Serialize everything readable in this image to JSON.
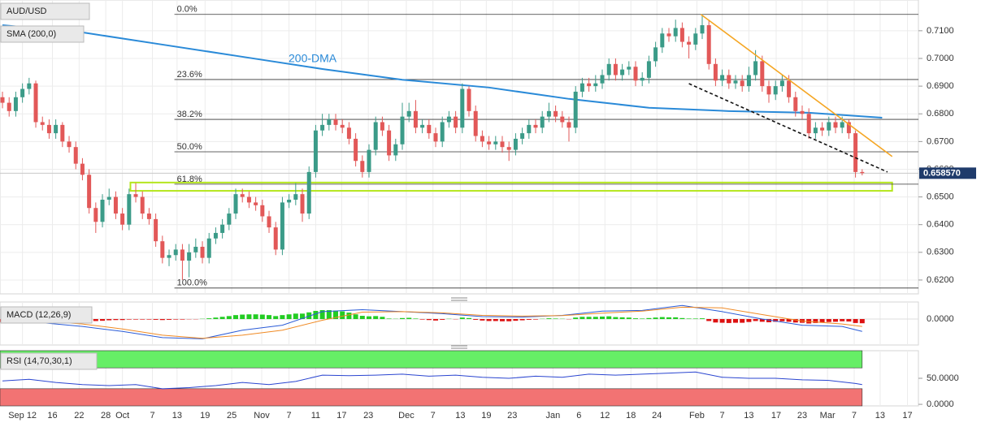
{
  "chart_data": {
    "type": "candlestick",
    "symbol": "AUD/USD",
    "up_color": "#3b9b88",
    "down_color": "#e25858",
    "xlim": [
      -0.37,
      137.44
    ],
    "xticks": [
      {
        "value": 3,
        "label": "Sep 12"
      },
      {
        "value": 7.5,
        "label": "16"
      },
      {
        "value": 11.5,
        "label": "22"
      },
      {
        "value": 15.5,
        "label": "28"
      },
      {
        "value": 18,
        "label": "Oct"
      },
      {
        "value": 22.5,
        "label": "7"
      },
      {
        "value": 26.2,
        "label": "13"
      },
      {
        "value": 30.4,
        "label": "19"
      },
      {
        "value": 34.4,
        "label": "25"
      },
      {
        "value": 38.9,
        "label": "Nov"
      },
      {
        "value": 43,
        "label": "7"
      },
      {
        "value": 47,
        "label": "11"
      },
      {
        "value": 50.9,
        "label": "17"
      },
      {
        "value": 54.9,
        "label": "23"
      },
      {
        "value": 60.6,
        "label": "Dec"
      },
      {
        "value": 64.6,
        "label": "7"
      },
      {
        "value": 68.7,
        "label": "13"
      },
      {
        "value": 72.6,
        "label": "19"
      },
      {
        "value": 76.5,
        "label": "23"
      },
      {
        "value": 82.6,
        "label": "Jan"
      },
      {
        "value": 86.5,
        "label": "6"
      },
      {
        "value": 90.4,
        "label": "12"
      },
      {
        "value": 94.3,
        "label": "18"
      },
      {
        "value": 98.2,
        "label": "24"
      },
      {
        "value": 104.2,
        "label": "Feb"
      },
      {
        "value": 108,
        "label": "7"
      },
      {
        "value": 112,
        "label": "13"
      },
      {
        "value": 116.1,
        "label": "17"
      },
      {
        "value": 120,
        "label": "23"
      },
      {
        "value": 123.8,
        "label": "Mar"
      },
      {
        "value": 127.8,
        "label": "7"
      },
      {
        "value": 131.7,
        "label": "13"
      },
      {
        "value": 135.8,
        "label": "17"
      }
    ],
    "ylim": [
      0.615,
      0.7211
    ],
    "yticks": [
      {
        "value": 0.62,
        "label": "0.6200"
      },
      {
        "value": 0.63,
        "label": "0.6300"
      },
      {
        "value": 0.64,
        "label": "0.6400"
      },
      {
        "value": 0.65,
        "label": "0.6500"
      },
      {
        "value": 0.66,
        "label": "0.6600"
      },
      {
        "value": 0.67,
        "label": "0.6700"
      },
      {
        "value": 0.68,
        "label": "0.6800"
      },
      {
        "value": 0.69,
        "label": "0.6900"
      },
      {
        "value": 0.7,
        "label": "0.7000"
      },
      {
        "value": 0.71,
        "label": "0.7100"
      }
    ],
    "last_price": {
      "value": 0.65857,
      "label": "0.658570",
      "color": "#1f3b6b"
    },
    "candles": [
      [
        0.686,
        0.688,
        0.682,
        0.684
      ],
      [
        0.684,
        0.686,
        0.679,
        0.681
      ],
      [
        0.681,
        0.688,
        0.679,
        0.686
      ],
      [
        0.686,
        0.691,
        0.684,
        0.689
      ],
      [
        0.689,
        0.693,
        0.687,
        0.691
      ],
      [
        0.691,
        0.692,
        0.675,
        0.677
      ],
      [
        0.677,
        0.679,
        0.674,
        0.676
      ],
      [
        0.676,
        0.678,
        0.671,
        0.673
      ],
      [
        0.673,
        0.678,
        0.671,
        0.676
      ],
      [
        0.676,
        0.677,
        0.668,
        0.67
      ],
      [
        0.67,
        0.672,
        0.666,
        0.668
      ],
      [
        0.668,
        0.67,
        0.66,
        0.662
      ],
      [
        0.662,
        0.664,
        0.656,
        0.658
      ],
      [
        0.658,
        0.66,
        0.644,
        0.646
      ],
      [
        0.646,
        0.648,
        0.637,
        0.641
      ],
      [
        0.641,
        0.651,
        0.639,
        0.649
      ],
      [
        0.649,
        0.653,
        0.647,
        0.65
      ],
      [
        0.65,
        0.652,
        0.642,
        0.644
      ],
      [
        0.644,
        0.646,
        0.638,
        0.64
      ],
      [
        0.64,
        0.653,
        0.638,
        0.651
      ],
      [
        0.651,
        0.655,
        0.648,
        0.65
      ],
      [
        0.65,
        0.652,
        0.642,
        0.644
      ],
      [
        0.644,
        0.646,
        0.64,
        0.642
      ],
      [
        0.642,
        0.644,
        0.632,
        0.634
      ],
      [
        0.634,
        0.636,
        0.626,
        0.628
      ],
      [
        0.628,
        0.631,
        0.625,
        0.629
      ],
      [
        0.629,
        0.633,
        0.627,
        0.631
      ],
      [
        0.631,
        0.633,
        0.62,
        0.627
      ],
      [
        0.627,
        0.633,
        0.621,
        0.63
      ],
      [
        0.63,
        0.635,
        0.628,
        0.632
      ],
      [
        0.632,
        0.634,
        0.626,
        0.628
      ],
      [
        0.628,
        0.637,
        0.626,
        0.635
      ],
      [
        0.635,
        0.639,
        0.633,
        0.637
      ],
      [
        0.637,
        0.642,
        0.635,
        0.64
      ],
      [
        0.64,
        0.646,
        0.638,
        0.644
      ],
      [
        0.644,
        0.653,
        0.642,
        0.651
      ],
      [
        0.651,
        0.653,
        0.648,
        0.65
      ],
      [
        0.65,
        0.652,
        0.646,
        0.648
      ],
      [
        0.648,
        0.65,
        0.645,
        0.647
      ],
      [
        0.647,
        0.649,
        0.641,
        0.643
      ],
      [
        0.643,
        0.645,
        0.637,
        0.639
      ],
      [
        0.639,
        0.641,
        0.629,
        0.631
      ],
      [
        0.631,
        0.65,
        0.629,
        0.648
      ],
      [
        0.648,
        0.651,
        0.646,
        0.649
      ],
      [
        0.649,
        0.655,
        0.647,
        0.651
      ],
      [
        0.651,
        0.653,
        0.641,
        0.644
      ],
      [
        0.644,
        0.661,
        0.642,
        0.659
      ],
      [
        0.659,
        0.676,
        0.657,
        0.674
      ],
      [
        0.674,
        0.68,
        0.672,
        0.676
      ],
      [
        0.676,
        0.68,
        0.674,
        0.678
      ],
      [
        0.678,
        0.68,
        0.674,
        0.676
      ],
      [
        0.676,
        0.678,
        0.673,
        0.675
      ],
      [
        0.675,
        0.677,
        0.669,
        0.671
      ],
      [
        0.671,
        0.673,
        0.661,
        0.663
      ],
      [
        0.663,
        0.665,
        0.657,
        0.659
      ],
      [
        0.659,
        0.669,
        0.657,
        0.667
      ],
      [
        0.667,
        0.679,
        0.665,
        0.677
      ],
      [
        0.677,
        0.679,
        0.672,
        0.674
      ],
      [
        0.674,
        0.676,
        0.663,
        0.665
      ],
      [
        0.665,
        0.671,
        0.663,
        0.669
      ],
      [
        0.669,
        0.684,
        0.667,
        0.679
      ],
      [
        0.679,
        0.684,
        0.677,
        0.681
      ],
      [
        0.681,
        0.685,
        0.673,
        0.675
      ],
      [
        0.675,
        0.678,
        0.673,
        0.676
      ],
      [
        0.676,
        0.678,
        0.671,
        0.673
      ],
      [
        0.673,
        0.675,
        0.668,
        0.67
      ],
      [
        0.67,
        0.679,
        0.668,
        0.677
      ],
      [
        0.677,
        0.681,
        0.675,
        0.679
      ],
      [
        0.679,
        0.681,
        0.673,
        0.675
      ],
      [
        0.675,
        0.691,
        0.673,
        0.689
      ],
      [
        0.689,
        0.69,
        0.679,
        0.681
      ],
      [
        0.681,
        0.683,
        0.67,
        0.672
      ],
      [
        0.672,
        0.674,
        0.668,
        0.67
      ],
      [
        0.67,
        0.672,
        0.667,
        0.669
      ],
      [
        0.669,
        0.672,
        0.667,
        0.67
      ],
      [
        0.67,
        0.672,
        0.666,
        0.668
      ],
      [
        0.668,
        0.67,
        0.663,
        0.667
      ],
      [
        0.667,
        0.673,
        0.665,
        0.671
      ],
      [
        0.671,
        0.675,
        0.669,
        0.673
      ],
      [
        0.673,
        0.678,
        0.671,
        0.676
      ],
      [
        0.676,
        0.678,
        0.673,
        0.675
      ],
      [
        0.675,
        0.681,
        0.673,
        0.679
      ],
      [
        0.679,
        0.684,
        0.677,
        0.681
      ],
      [
        0.681,
        0.683,
        0.677,
        0.679
      ],
      [
        0.679,
        0.681,
        0.675,
        0.677
      ],
      [
        0.677,
        0.679,
        0.67,
        0.675
      ],
      [
        0.675,
        0.69,
        0.673,
        0.688
      ],
      [
        0.688,
        0.693,
        0.686,
        0.691
      ],
      [
        0.691,
        0.693,
        0.688,
        0.69
      ],
      [
        0.69,
        0.694,
        0.688,
        0.691
      ],
      [
        0.691,
        0.696,
        0.689,
        0.694
      ],
      [
        0.694,
        0.7,
        0.692,
        0.698
      ],
      [
        0.698,
        0.7,
        0.692,
        0.694
      ],
      [
        0.694,
        0.698,
        0.692,
        0.696
      ],
      [
        0.696,
        0.699,
        0.694,
        0.697
      ],
      [
        0.697,
        0.699,
        0.69,
        0.692
      ],
      [
        0.692,
        0.695,
        0.69,
        0.693
      ],
      [
        0.693,
        0.701,
        0.691,
        0.699
      ],
      [
        0.699,
        0.706,
        0.697,
        0.704
      ],
      [
        0.704,
        0.711,
        0.702,
        0.709
      ],
      [
        0.709,
        0.711,
        0.706,
        0.708
      ],
      [
        0.708,
        0.714,
        0.706,
        0.711
      ],
      [
        0.711,
        0.713,
        0.704,
        0.706
      ],
      [
        0.706,
        0.708,
        0.7,
        0.705
      ],
      [
        0.705,
        0.711,
        0.703,
        0.709
      ],
      [
        0.709,
        0.716,
        0.707,
        0.712
      ],
      [
        0.712,
        0.714,
        0.696,
        0.698
      ],
      [
        0.698,
        0.7,
        0.69,
        0.692
      ],
      [
        0.692,
        0.696,
        0.69,
        0.694
      ],
      [
        0.694,
        0.696,
        0.689,
        0.691
      ],
      [
        0.691,
        0.694,
        0.689,
        0.692
      ],
      [
        0.692,
        0.694,
        0.688,
        0.69
      ],
      [
        0.69,
        0.697,
        0.688,
        0.694
      ],
      [
        0.694,
        0.703,
        0.692,
        0.699
      ],
      [
        0.699,
        0.701,
        0.688,
        0.69
      ],
      [
        0.69,
        0.692,
        0.684,
        0.687
      ],
      [
        0.687,
        0.692,
        0.685,
        0.69
      ],
      [
        0.69,
        0.694,
        0.688,
        0.692
      ],
      [
        0.692,
        0.694,
        0.684,
        0.686
      ],
      [
        0.686,
        0.688,
        0.679,
        0.681
      ],
      [
        0.681,
        0.683,
        0.678,
        0.68
      ],
      [
        0.68,
        0.682,
        0.671,
        0.673
      ],
      [
        0.673,
        0.677,
        0.671,
        0.675
      ],
      [
        0.675,
        0.677,
        0.672,
        0.674
      ],
      [
        0.674,
        0.679,
        0.672,
        0.677
      ],
      [
        0.677,
        0.679,
        0.673,
        0.675
      ],
      [
        0.675,
        0.679,
        0.673,
        0.677
      ],
      [
        0.677,
        0.678,
        0.671,
        0.673
      ],
      [
        0.673,
        0.674,
        0.657,
        0.659
      ],
      [
        0.659,
        0.66,
        0.6578,
        0.6586
      ]
    ],
    "sma": {
      "name": "SMA (200,0)",
      "label": "200-DMA",
      "color": "#2a8ad8",
      "x": [
        0,
        12,
        24,
        36,
        48,
        60,
        73,
        85,
        97,
        109,
        121,
        132
      ],
      "values": [
        0.712,
        0.7094,
        0.705,
        0.7006,
        0.6962,
        0.6923,
        0.6895,
        0.6854,
        0.6822,
        0.681,
        0.6804,
        0.6786
      ]
    },
    "fibonacci": {
      "start": 25.8,
      "color": "#333333",
      "levels": [
        {
          "label": "0.0%",
          "value": 0.7159
        },
        {
          "label": "23.6%",
          "value": 0.6924
        },
        {
          "label": "38.2%",
          "value": 0.678
        },
        {
          "label": "50.0%",
          "value": 0.6663
        },
        {
          "label": "61.8%",
          "value": 0.6546
        },
        {
          "label": "100.0%",
          "value": 0.6171
        }
      ]
    },
    "trendlines": [
      {
        "color": "#f5a623",
        "dashed": false,
        "x": [
          104.8,
          133.5
        ],
        "values": [
          0.7159,
          0.6646
        ]
      },
      {
        "color": "#111111",
        "dashed": true,
        "x": [
          103,
          132.8
        ],
        "values": [
          0.6909,
          0.659
        ]
      }
    ],
    "zone": {
      "color": "#b5e61d",
      "x": [
        19.2,
        133.5
      ],
      "values": [
        0.6552,
        0.6522
      ]
    },
    "macd": {
      "name": "MACD (12,26,9)",
      "ylim": [
        -0.0105,
        0.0069
      ],
      "yticks": [
        {
          "value": 0,
          "label": "0.0000"
        }
      ],
      "up_color": "#22cc22",
      "down_color": "#dd1111",
      "histogram": [
        -0.0012,
        -0.0012,
        -0.0011,
        -0.001,
        -0.001,
        -0.0012,
        -0.0013,
        -0.0013,
        -0.0012,
        -0.0012,
        -0.0011,
        -0.0011,
        -0.001,
        -0.001,
        -0.0008,
        -0.0007,
        -0.0005,
        -0.0004,
        -0.0004,
        -0.0002,
        -0.0002,
        -0.0002,
        -0.0002,
        -0.0003,
        -0.0004,
        -0.0003,
        -0.0002,
        -0.0002,
        -0.0001,
        -0.0001,
        0.0001,
        0.0003,
        0.0006,
        0.0009,
        0.0012,
        0.0016,
        0.0018,
        0.0019,
        0.0019,
        0.0018,
        0.0016,
        0.0012,
        0.0016,
        0.0019,
        0.0022,
        0.0022,
        0.0027,
        0.0033,
        0.0036,
        0.0036,
        0.0034,
        0.0031,
        0.0026,
        0.0019,
        0.0013,
        0.0011,
        0.0012,
        0.0009,
        0.0002,
        0.0001,
        0.0004,
        0.0005,
        0.0002,
        -0.0002,
        -0.0004,
        -0.0006,
        -0.0003,
        0.0001,
        -0.0001,
        0.0006,
        0.0004,
        -0.0003,
        -0.0006,
        -0.0008,
        -0.0008,
        -0.0009,
        -0.0009,
        -0.0007,
        -0.0005,
        -0.0003,
        -0.0002,
        0.0001,
        0.0003,
        0.0002,
        0.0001,
        -0.0001,
        0.0006,
        0.0009,
        0.0009,
        0.0009,
        0.001,
        0.0011,
        0.0008,
        0.0007,
        0.0006,
        0.0003,
        0.0002,
        0.0004,
        0.0006,
        0.0008,
        0.0007,
        0.0007,
        0.0004,
        0.0002,
        0.0002,
        0.0003,
        -0.0008,
        -0.0014,
        -0.0015,
        -0.0016,
        -0.0015,
        -0.0015,
        -0.0012,
        -0.0008,
        -0.0011,
        -0.0013,
        -0.0011,
        -0.0009,
        -0.0011,
        -0.0014,
        -0.0015,
        -0.0018,
        -0.0016,
        -0.0015,
        -0.0012,
        -0.0011,
        -0.0009,
        -0.001,
        -0.0016,
        -0.0017
      ],
      "macd_line": {
        "color": "#2a5bd7",
        "x": [
          0,
          6,
          12,
          18,
          24,
          30,
          36,
          42,
          48,
          54,
          60,
          66,
          72,
          78,
          84,
          90,
          96,
          102,
          108,
          114,
          120,
          126,
          129
        ],
        "values": [
          -0.0005,
          -0.0015,
          -0.003,
          -0.005,
          -0.0075,
          -0.008,
          -0.0045,
          -0.0025,
          0.003,
          0.0038,
          0.003,
          0.0022,
          0.001,
          0.0008,
          0.0015,
          0.0032,
          0.0035,
          0.0055,
          0.003,
          0,
          -0.0025,
          -0.003,
          -0.005
        ]
      },
      "signal_line": {
        "color": "#f08a24",
        "x": [
          0,
          6,
          12,
          18,
          24,
          30,
          36,
          42,
          48,
          54,
          60,
          66,
          72,
          78,
          84,
          90,
          96,
          102,
          108,
          114,
          120,
          126,
          129
        ],
        "values": [
          0.0002,
          -0.0008,
          -0.002,
          -0.004,
          -0.0065,
          -0.0078,
          -0.0065,
          -0.0045,
          -0.0005,
          0.0028,
          0.003,
          0.0025,
          0.0015,
          0.0012,
          0.0014,
          0.0024,
          0.0032,
          0.0048,
          0.0045,
          0.0018,
          -0.0008,
          -0.002,
          -0.003
        ]
      }
    },
    "rsi": {
      "name": "RSI (14,70,30,1)",
      "ylim": [
        -3,
        103
      ],
      "yticks": [
        {
          "value": 0,
          "label": "0.0000"
        },
        {
          "value": 50,
          "label": "50.0000"
        }
      ],
      "overbought": 70,
      "oversold": 30,
      "end": 129,
      "overbought_color": "#66ee66",
      "oversold_color": "#f27373",
      "color": "#2a45d0",
      "x": [
        0,
        4,
        8,
        12,
        16,
        20,
        24,
        28,
        32,
        36,
        40,
        44,
        48,
        52,
        56,
        60,
        64,
        68,
        72,
        76,
        80,
        84,
        88,
        92,
        96,
        100,
        104,
        108,
        112,
        116,
        120,
        124,
        128,
        129
      ],
      "values": [
        45,
        48,
        42,
        38,
        36,
        38,
        30,
        32,
        36,
        42,
        38,
        44,
        56,
        55,
        56,
        58,
        54,
        56,
        52,
        50,
        54,
        52,
        58,
        56,
        58,
        60,
        62,
        52,
        50,
        50,
        47,
        46,
        40,
        38
      ]
    }
  }
}
